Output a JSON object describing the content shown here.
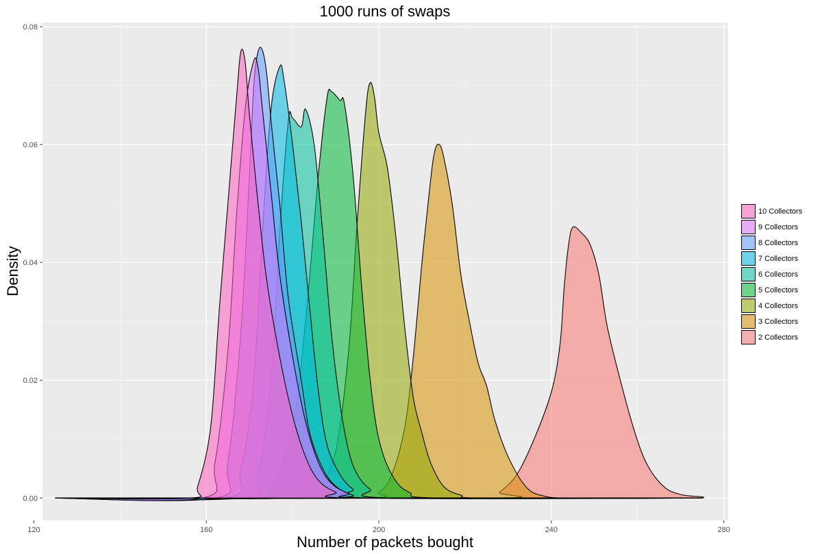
{
  "chart_data": {
    "type": "area",
    "title": "1000 runs of swaps",
    "xlabel": "Number of packets bought",
    "ylabel": "Density",
    "xlim": [
      122,
      281
    ],
    "ylim": [
      -0.0038,
      0.0807
    ],
    "x_ticks": [
      120,
      160,
      200,
      240,
      280
    ],
    "x_tick_labels": [
      "120",
      "160",
      "200",
      "240",
      "280"
    ],
    "y_ticks": [
      0,
      0.02,
      0.04,
      0.06,
      0.08
    ],
    "y_tick_labels": [
      "0.00",
      "0.02",
      "0.04",
      "0.06",
      "0.08"
    ],
    "grid": true,
    "legend_position": "right",
    "series": [
      {
        "name": "2 Collectors",
        "color": "#F8766D",
        "points": [
          [
            125,
            0
          ],
          [
            225,
            0
          ],
          [
            228,
            0.001
          ],
          [
            232,
            0.004
          ],
          [
            236,
            0.01
          ],
          [
            240,
            0.018
          ],
          [
            242,
            0.026
          ],
          [
            243,
            0.036
          ],
          [
            244,
            0.043
          ],
          [
            245,
            0.046
          ],
          [
            247,
            0.045
          ],
          [
            249,
            0.043
          ],
          [
            251,
            0.038
          ],
          [
            253,
            0.029
          ],
          [
            256,
            0.02
          ],
          [
            259,
            0.012
          ],
          [
            262,
            0.006
          ],
          [
            266,
            0.002
          ],
          [
            270,
            0.0006
          ],
          [
            275,
            0.0002
          ],
          [
            275,
            0
          ]
        ]
      },
      {
        "name": "3 Collectors",
        "color": "#D39200",
        "points": [
          [
            125,
            0
          ],
          [
            195,
            0
          ],
          [
            200,
            0.001
          ],
          [
            203,
            0.004
          ],
          [
            206,
            0.012
          ],
          [
            208,
            0.024
          ],
          [
            210,
            0.04
          ],
          [
            212,
            0.054
          ],
          [
            213,
            0.059
          ],
          [
            214,
            0.06
          ],
          [
            215,
            0.058
          ],
          [
            217,
            0.05
          ],
          [
            219,
            0.038
          ],
          [
            221,
            0.03
          ],
          [
            223,
            0.023
          ],
          [
            225,
            0.019
          ],
          [
            227,
            0.013
          ],
          [
            230,
            0.007
          ],
          [
            234,
            0.002
          ],
          [
            238,
            0.0004
          ],
          [
            245,
            0
          ],
          [
            275,
            0
          ]
        ]
      },
      {
        "name": "4 Collectors",
        "color": "#93AA00",
        "points": [
          [
            125,
            0
          ],
          [
            180,
            0
          ],
          [
            186,
            0.002
          ],
          [
            190,
            0.008
          ],
          [
            193,
            0.025
          ],
          [
            195,
            0.047
          ],
          [
            197,
            0.066
          ],
          [
            198,
            0.0705
          ],
          [
            199,
            0.068
          ],
          [
            200,
            0.062
          ],
          [
            202,
            0.056
          ],
          [
            204,
            0.044
          ],
          [
            206,
            0.029
          ],
          [
            208,
            0.017
          ],
          [
            210,
            0.011
          ],
          [
            212,
            0.006
          ],
          [
            215,
            0.002
          ],
          [
            219,
            0.0005
          ],
          [
            225,
            0
          ],
          [
            275,
            0
          ]
        ]
      },
      {
        "name": "5 Collectors",
        "color": "#00BA38",
        "points": [
          [
            125,
            0
          ],
          [
            170,
            0
          ],
          [
            175,
            0.002
          ],
          [
            180,
            0.012
          ],
          [
            183,
            0.03
          ],
          [
            186,
            0.055
          ],
          [
            188,
            0.068
          ],
          [
            189,
            0.069
          ],
          [
            191,
            0.0675
          ],
          [
            192,
            0.067
          ],
          [
            194,
            0.055
          ],
          [
            196,
            0.036
          ],
          [
            198,
            0.02
          ],
          [
            200,
            0.01
          ],
          [
            203,
            0.004
          ],
          [
            207,
            0.001
          ],
          [
            215,
            0
          ],
          [
            275,
            0
          ]
        ]
      },
      {
        "name": "6 Collectors",
        "color": "#00C19F",
        "points": [
          [
            125,
            0
          ],
          [
            168,
            0
          ],
          [
            172,
            0.004
          ],
          [
            175,
            0.02
          ],
          [
            177,
            0.045
          ],
          [
            179,
            0.064
          ],
          [
            180,
            0.0645
          ],
          [
            182,
            0.063
          ],
          [
            183,
            0.066
          ],
          [
            185,
            0.06
          ],
          [
            187,
            0.045
          ],
          [
            189,
            0.028
          ],
          [
            191,
            0.016
          ],
          [
            193,
            0.008
          ],
          [
            195,
            0.004
          ],
          [
            198,
            0.0015
          ],
          [
            203,
            0
          ],
          [
            275,
            0
          ]
        ]
      },
      {
        "name": "7 Collectors",
        "color": "#00B9E3",
        "points": [
          [
            125,
            0
          ],
          [
            164,
            0
          ],
          [
            168,
            0.005
          ],
          [
            171,
            0.02
          ],
          [
            173,
            0.045
          ],
          [
            175,
            0.066
          ],
          [
            177,
            0.0732
          ],
          [
            178,
            0.071
          ],
          [
            180,
            0.06
          ],
          [
            182,
            0.047
          ],
          [
            184,
            0.032
          ],
          [
            186,
            0.018
          ],
          [
            188,
            0.009
          ],
          [
            191,
            0.004
          ],
          [
            194,
            0.0015
          ],
          [
            198,
            0
          ],
          [
            275,
            0
          ]
        ]
      },
      {
        "name": "8 Collectors",
        "color": "#619CFF",
        "points": [
          [
            125,
            0
          ],
          [
            162,
            0
          ],
          [
            165,
            0.006
          ],
          [
            168,
            0.028
          ],
          [
            170,
            0.055
          ],
          [
            171,
            0.07
          ],
          [
            172,
            0.0758
          ],
          [
            173,
            0.076
          ],
          [
            174,
            0.072
          ],
          [
            175,
            0.064
          ],
          [
            177,
            0.05
          ],
          [
            179,
            0.034
          ],
          [
            182,
            0.02
          ],
          [
            184,
            0.011
          ],
          [
            187,
            0.005
          ],
          [
            190,
            0.002
          ],
          [
            194,
            0.0005
          ],
          [
            200,
            0
          ],
          [
            275,
            0
          ]
        ]
      },
      {
        "name": "9 Collectors",
        "color": "#DB72FB",
        "points": [
          [
            125,
            0
          ],
          [
            159,
            0
          ],
          [
            162,
            0.006
          ],
          [
            165,
            0.025
          ],
          [
            167,
            0.048
          ],
          [
            169,
            0.066
          ],
          [
            171,
            0.0742
          ],
          [
            172,
            0.073
          ],
          [
            173,
            0.066
          ],
          [
            175,
            0.052
          ],
          [
            177,
            0.038
          ],
          [
            180,
            0.024
          ],
          [
            183,
            0.013
          ],
          [
            186,
            0.006
          ],
          [
            189,
            0.0025
          ],
          [
            193,
            0.0008
          ],
          [
            198,
            0
          ],
          [
            275,
            0
          ]
        ]
      },
      {
        "name": "10 Collectors",
        "color": "#FF61C3",
        "points": [
          [
            125,
            0
          ],
          [
            156,
            0
          ],
          [
            158,
            0.002
          ],
          [
            161,
            0.012
          ],
          [
            163,
            0.032
          ],
          [
            165,
            0.05
          ],
          [
            167,
            0.068
          ],
          [
            168,
            0.0758
          ],
          [
            169,
            0.074
          ],
          [
            170,
            0.065
          ],
          [
            172,
            0.05
          ],
          [
            174,
            0.037
          ],
          [
            177,
            0.024
          ],
          [
            180,
            0.014
          ],
          [
            183,
            0.007
          ],
          [
            186,
            0.003
          ],
          [
            190,
            0.001
          ],
          [
            195,
            0
          ],
          [
            275,
            0
          ]
        ]
      }
    ],
    "legend_order": [
      "10 Collectors",
      "9 Collectors",
      "8 Collectors",
      "7 Collectors",
      "6 Collectors",
      "5 Collectors",
      "4 Collectors",
      "3 Collectors",
      "2 Collectors"
    ]
  }
}
